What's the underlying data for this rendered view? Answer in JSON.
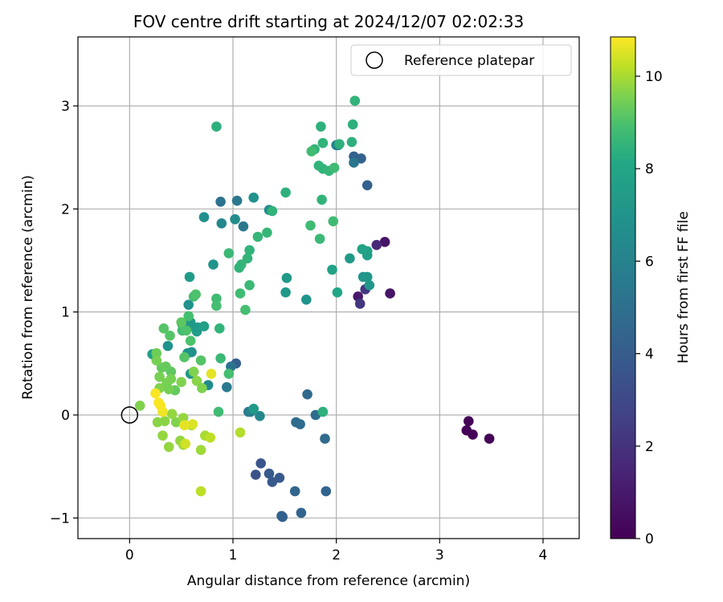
{
  "chart_data": {
    "type": "scatter",
    "title": "FOV centre drift starting at 2024/12/07 02:02:33",
    "xlabel": "Angular distance from reference (arcmin)",
    "ylabel": "Rotation from reference (arcmin)",
    "xlim": [
      -0.5,
      4.35
    ],
    "ylim": [
      -1.2,
      3.67
    ],
    "xticks": [
      "0",
      "1",
      "2",
      "3",
      "4"
    ],
    "xtick_values": [
      0,
      1,
      2,
      3,
      4
    ],
    "yticks": [
      "−1",
      "0",
      "1",
      "2",
      "3"
    ],
    "ytick_values": [
      -1,
      0,
      1,
      2,
      3
    ],
    "grid": true,
    "legend": {
      "position": "top-right",
      "entries": [
        "Reference platepar"
      ]
    },
    "reference_point": {
      "x": 0,
      "y": 0
    },
    "colorbar": {
      "label": "Hours from first FF file",
      "colormap": "viridis",
      "range": [
        0,
        10.85
      ],
      "ticks": [
        "0",
        "2",
        "4",
        "6",
        "8",
        "10"
      ],
      "tick_values": [
        0,
        2,
        4,
        6,
        8,
        10
      ]
    },
    "points": [
      [
        3.28,
        -0.06,
        0.1
      ],
      [
        3.26,
        -0.15,
        0.1
      ],
      [
        3.32,
        -0.19,
        0.1
      ],
      [
        3.48,
        -0.23,
        0.1
      ],
      [
        2.47,
        1.68,
        0.8
      ],
      [
        2.52,
        1.18,
        0.8
      ],
      [
        2.21,
        1.15,
        1.0
      ],
      [
        2.39,
        1.65,
        1.6
      ],
      [
        2.23,
        1.08,
        2.2
      ],
      [
        2.28,
        1.22,
        2.2
      ],
      [
        1.22,
        -0.58,
        3.5
      ],
      [
        1.27,
        -0.47,
        3.6
      ],
      [
        1.35,
        -0.57,
        3.8
      ],
      [
        1.38,
        -0.65,
        3.8
      ],
      [
        1.45,
        -0.61,
        3.8
      ],
      [
        1.47,
        -0.98,
        4.2
      ],
      [
        1.48,
        -0.99,
        4.2
      ],
      [
        1.9,
        -0.74,
        4.4
      ],
      [
        1.66,
        -0.95,
        4.4
      ],
      [
        1.6,
        -0.74,
        4.5
      ],
      [
        1.03,
        0.5,
        4.1
      ],
      [
        2.3,
        2.23,
        4.2
      ],
      [
        2.17,
        2.51,
        4.2
      ],
      [
        2.24,
        2.49,
        4.3
      ],
      [
        1.61,
        -0.07,
        4.8
      ],
      [
        1.65,
        -0.09,
        4.8
      ],
      [
        1.72,
        0.2,
        4.6
      ],
      [
        1.89,
        -0.23,
        4.7
      ],
      [
        1.8,
        0.0,
        4.8
      ],
      [
        0.88,
        2.07,
        5.1
      ],
      [
        1.04,
        2.08,
        5.4
      ],
      [
        1.1,
        1.83,
        5.4
      ],
      [
        0.98,
        0.47,
        5.2
      ],
      [
        0.94,
        0.27,
        5.5
      ],
      [
        2.17,
        2.45,
        5.3
      ],
      [
        2.02,
        2.62,
        5.2
      ],
      [
        2.0,
        2.62,
        6.0
      ],
      [
        1.15,
        0.03,
        5.6
      ],
      [
        1.17,
        0.03,
        5.8
      ],
      [
        1.26,
        -0.01,
        6.3
      ],
      [
        0.89,
        1.86,
        6.3
      ],
      [
        1.35,
        1.99,
        6.5
      ],
      [
        1.02,
        1.9,
        6.6
      ],
      [
        1.2,
        2.11,
        6.9
      ],
      [
        0.72,
        1.92,
        6.8
      ],
      [
        0.81,
        1.46,
        7.0
      ],
      [
        0.57,
        1.07,
        6.9
      ],
      [
        0.58,
        1.34,
        7.4
      ],
      [
        0.6,
        0.61,
        6.8
      ],
      [
        0.56,
        0.6,
        7.0
      ],
      [
        0.57,
        0.85,
        7.1
      ],
      [
        0.59,
        0.9,
        7.3
      ],
      [
        0.65,
        0.81,
        7.5
      ],
      [
        0.66,
        0.85,
        7.4
      ],
      [
        0.72,
        0.86,
        7.6
      ],
      [
        0.76,
        0.29,
        6.5
      ],
      [
        0.59,
        0.4,
        7.2
      ],
      [
        0.37,
        0.67,
        6.9
      ],
      [
        0.51,
        0.88,
        7.3
      ],
      [
        0.22,
        0.59,
        7.7
      ],
      [
        1.52,
        1.33,
        7.3
      ],
      [
        1.51,
        1.19,
        7.3
      ],
      [
        1.2,
        0.06,
        7.3
      ],
      [
        1.71,
        1.12,
        7.0
      ],
      [
        2.13,
        1.52,
        7.3
      ],
      [
        2.32,
        1.26,
        7.2
      ],
      [
        2.26,
        1.34,
        7.2
      ],
      [
        2.3,
        1.34,
        7.2
      ],
      [
        2.3,
        1.55,
        7.6
      ],
      [
        2.3,
        1.59,
        7.6
      ],
      [
        2.25,
        1.61,
        7.8
      ],
      [
        1.96,
        1.41,
        7.8
      ],
      [
        2.01,
        1.19,
        8.0
      ],
      [
        1.87,
        0.03,
        8.4
      ],
      [
        1.38,
        1.98,
        8.5
      ],
      [
        1.51,
        2.16,
        8.4
      ],
      [
        1.24,
        1.73,
        8.6
      ],
      [
        1.33,
        1.77,
        8.6
      ],
      [
        1.16,
        1.6,
        8.5
      ],
      [
        1.14,
        1.52,
        8.5
      ],
      [
        1.08,
        1.46,
        8.6
      ],
      [
        1.06,
        1.43,
        8.5
      ],
      [
        0.96,
        1.57,
        8.7
      ],
      [
        1.16,
        1.26,
        8.7
      ],
      [
        1.07,
        1.18,
        8.8
      ],
      [
        1.12,
        1.02,
        8.9
      ],
      [
        0.84,
        1.13,
        8.8
      ],
      [
        0.84,
        1.06,
        8.9
      ],
      [
        0.87,
        0.84,
        8.5
      ],
      [
        0.88,
        0.55,
        8.7
      ],
      [
        0.96,
        0.4,
        8.9
      ],
      [
        0.86,
        0.03,
        8.8
      ],
      [
        0.84,
        2.8,
        8.4
      ],
      [
        1.85,
        2.8,
        8.4
      ],
      [
        2.16,
        2.82,
        8.4
      ],
      [
        2.15,
        2.65,
        8.4
      ],
      [
        2.18,
        3.05,
        8.5
      ],
      [
        1.87,
        2.64,
        8.5
      ],
      [
        1.79,
        2.58,
        8.5
      ],
      [
        1.76,
        2.56,
        8.8
      ],
      [
        2.03,
        2.63,
        8.4
      ],
      [
        1.83,
        2.42,
        8.5
      ],
      [
        1.87,
        2.39,
        8.5
      ],
      [
        1.93,
        2.37,
        8.6
      ],
      [
        1.98,
        2.4,
        8.8
      ],
      [
        1.86,
        2.09,
        8.5
      ],
      [
        1.84,
        1.71,
        8.7
      ],
      [
        1.97,
        1.88,
        8.8
      ],
      [
        1.75,
        1.84,
        8.8
      ],
      [
        0.57,
        0.96,
        8.9
      ],
      [
        0.62,
        1.15,
        8.9
      ],
      [
        0.64,
        1.17,
        9.0
      ],
      [
        0.51,
        0.82,
        8.9
      ],
      [
        0.55,
        0.82,
        9.0
      ],
      [
        0.59,
        0.72,
        9.0
      ],
      [
        0.53,
        0.56,
        9.1
      ],
      [
        0.69,
        0.53,
        9.1
      ],
      [
        0.33,
        0.84,
        9.1
      ],
      [
        0.39,
        0.77,
        9.1
      ],
      [
        0.5,
        0.9,
        9.2
      ],
      [
        0.4,
        0.42,
        9.2
      ],
      [
        0.44,
        0.24,
        9.3
      ],
      [
        0.31,
        0.46,
        9.3
      ],
      [
        0.35,
        0.47,
        9.3
      ],
      [
        0.26,
        0.6,
        9.4
      ],
      [
        0.26,
        0.53,
        9.5
      ],
      [
        0.29,
        0.37,
        9.5
      ],
      [
        0.36,
        0.31,
        9.5
      ],
      [
        0.38,
        0.25,
        9.5
      ],
      [
        0.4,
        0.35,
        9.5
      ],
      [
        0.29,
        0.26,
        9.6
      ],
      [
        0.5,
        0.32,
        9.6
      ],
      [
        0.62,
        0.42,
        9.6
      ],
      [
        0.65,
        0.33,
        9.7
      ],
      [
        0.7,
        0.26,
        9.6
      ],
      [
        0.1,
        0.09,
        9.6
      ],
      [
        0.27,
        -0.07,
        9.7
      ],
      [
        0.34,
        -0.06,
        9.7
      ],
      [
        0.45,
        -0.07,
        9.6
      ],
      [
        0.52,
        -0.03,
        9.8
      ],
      [
        0.41,
        0.01,
        9.8
      ],
      [
        0.32,
        -0.2,
        9.8
      ],
      [
        0.38,
        -0.31,
        9.8
      ],
      [
        0.49,
        -0.25,
        9.8
      ],
      [
        0.52,
        -0.29,
        9.9
      ],
      [
        0.6,
        -0.1,
        10.0
      ],
      [
        0.69,
        -0.34,
        9.9
      ],
      [
        0.73,
        -0.2,
        10.0
      ],
      [
        0.79,
        0.4,
        10.6
      ],
      [
        1.07,
        -0.17,
        10.1
      ],
      [
        0.54,
        -0.28,
        10.4
      ],
      [
        0.78,
        -0.22,
        10.2
      ],
      [
        0.61,
        -0.09,
        10.5
      ],
      [
        0.53,
        -0.1,
        10.6
      ],
      [
        0.32,
        0.03,
        10.7
      ],
      [
        0.28,
        0.12,
        10.8
      ],
      [
        0.3,
        0.09,
        10.8
      ],
      [
        0.25,
        0.21,
        10.8
      ],
      [
        0.69,
        -0.74,
        10.2
      ]
    ]
  }
}
